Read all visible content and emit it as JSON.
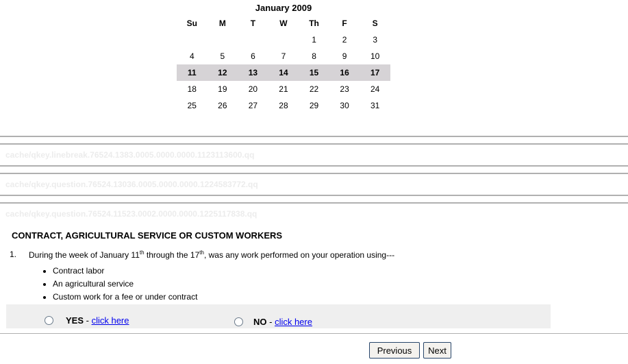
{
  "calendar": {
    "title": "January 2009",
    "days": [
      "Su",
      "M",
      "T",
      "W",
      "Th",
      "F",
      "S"
    ],
    "weeks": [
      [
        "",
        "",
        "",
        "",
        "1",
        "2",
        "3"
      ],
      [
        "4",
        "5",
        "6",
        "7",
        "8",
        "9",
        "10"
      ],
      [
        "11",
        "12",
        "13",
        "14",
        "15",
        "16",
        "17"
      ],
      [
        "18",
        "19",
        "20",
        "21",
        "22",
        "23",
        "24"
      ],
      [
        "25",
        "26",
        "27",
        "28",
        "29",
        "30",
        "31"
      ]
    ],
    "highlighted_week": 2
  },
  "cache_lines": [
    "cache/qkey.linebreak.76524.1383.0005.0000.0000.1123113600.qq",
    "cache/qkey.question.76524.13036.0005.0000.0000.1224583772.qq",
    "cache/qkey.question.76524.11523.0002.0000.0000.1225117838.qq"
  ],
  "section_title": "CONTRACT, AGRICULTURAL SERVICE OR CUSTOM WORKERS",
  "question": {
    "number": "1.",
    "text_a": "During the week of January 11",
    "sup_a": "th",
    "text_b": " through the 17",
    "sup_b": "th",
    "text_c": ", was any work performed on your operation using---",
    "bullets": [
      "Contract labor",
      "An agricultural service",
      "Custom work for a fee or under contract"
    ]
  },
  "answers": {
    "yes_label": "YES",
    "no_label": "NO",
    "sep": " - ",
    "link": "click here"
  },
  "nav": {
    "previous": "Previous",
    "next": "Next"
  }
}
